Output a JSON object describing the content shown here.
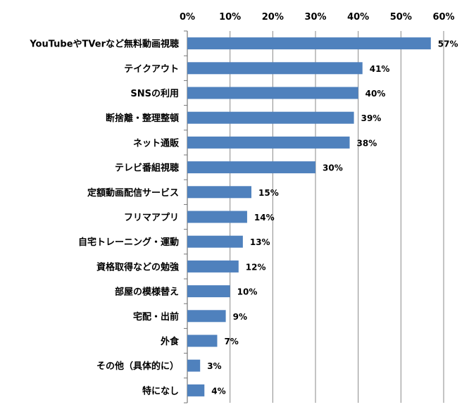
{
  "chart_data": {
    "type": "bar",
    "orientation": "horizontal",
    "categories": [
      "YouTubeやTVerなど無料動画視聴",
      "テイクアウト",
      "SNSの利用",
      "断捨離・整理整頓",
      "ネット通販",
      "テレビ番組視聴",
      "定額動画配信サービス",
      "フリマアプリ",
      "自宅トレーニング・運動",
      "資格取得などの勉強",
      "部屋の模様替え",
      "宅配・出前",
      "外食",
      "その他（具体的に）",
      "特になし"
    ],
    "values": [
      57,
      41,
      40,
      39,
      38,
      30,
      15,
      14,
      13,
      12,
      10,
      9,
      7,
      3,
      4
    ],
    "value_labels": [
      "57%",
      "41%",
      "40%",
      "39%",
      "38%",
      "30%",
      "15%",
      "14%",
      "13%",
      "12%",
      "10%",
      "9%",
      "7%",
      "3%",
      "4%"
    ],
    "x_ticks": [
      "0%",
      "10%",
      "20%",
      "30%",
      "40%",
      "50%",
      "60%"
    ],
    "xlim": [
      0,
      60
    ],
    "axis_position": "top",
    "grid": true,
    "bar_color": "#4f81bd",
    "grid_color": "#888888"
  }
}
